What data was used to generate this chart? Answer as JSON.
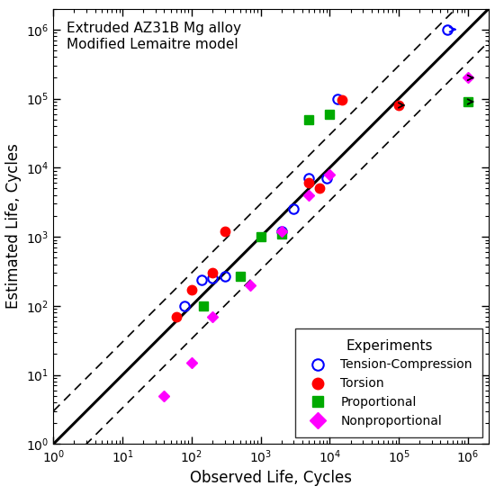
{
  "title_line1": "Extruded AZ31B Mg alloy",
  "title_line2": "Modified Lemaitre model",
  "xlabel": "Observed Life, Cycles",
  "ylabel": "Estimated Life, Cycles",
  "xlim": [
    1,
    1000000.0
  ],
  "ylim": [
    1,
    1000000.0
  ],
  "tc_x": [
    80,
    140,
    200,
    300,
    2000,
    3000,
    5000,
    9000,
    13000
  ],
  "tc_y": [
    100,
    240,
    250,
    270,
    1200,
    2500,
    7000,
    7000,
    100000
  ],
  "tc_runout_x": [
    500000
  ],
  "tc_runout_y": [
    1000000
  ],
  "torsion_x": [
    60,
    100,
    200,
    300,
    5000,
    7000,
    15000
  ],
  "torsion_y": [
    70,
    170,
    300,
    1200,
    6000,
    5000,
    95000
  ],
  "torsion_runout_x": [
    100000
  ],
  "torsion_runout_y": [
    80000
  ],
  "prop_x": [
    150,
    500,
    1000,
    2000,
    5000,
    10000
  ],
  "prop_y": [
    100,
    270,
    1000,
    1100,
    50000,
    60000
  ],
  "prop_runout_x": [
    1000000
  ],
  "prop_runout_y": [
    90000
  ],
  "nonprop_x": [
    40,
    100,
    200,
    700,
    2000,
    5000,
    10000
  ],
  "nonprop_y": [
    5,
    15,
    70,
    200,
    1200,
    4000,
    8000
  ],
  "nonprop_runout_x": [
    1000000
  ],
  "nonprop_runout_y": [
    200000
  ],
  "tc_color": "#0000ff",
  "torsion_color": "#ff0000",
  "prop_color": "#00aa00",
  "nonprop_color": "#ff00ff",
  "line_color": "#000000"
}
